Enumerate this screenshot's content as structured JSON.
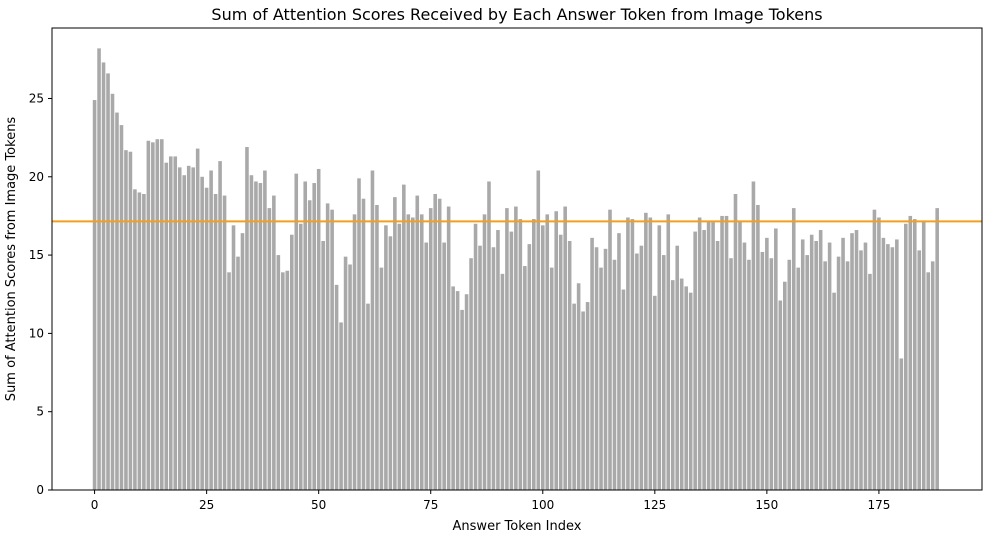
{
  "chart_data": {
    "type": "bar",
    "title": "Sum of Attention Scores Received by Each Answer Token from Image Tokens",
    "xlabel": "Answer Token Index",
    "ylabel": "Sum of Attention Scores from Image Tokens",
    "xlim": [
      -9.5,
      198
    ],
    "ylim": [
      0,
      29.5
    ],
    "x_ticks": [
      0,
      25,
      50,
      75,
      100,
      125,
      150,
      175
    ],
    "y_ticks": [
      0,
      5,
      10,
      15,
      20,
      25
    ],
    "grid": false,
    "bar_color": "#a9a9a9",
    "reference_line": {
      "y": 17.15,
      "color": "#f0a01e"
    },
    "values": [
      24.9,
      28.2,
      27.3,
      26.6,
      25.3,
      24.1,
      23.3,
      21.7,
      21.6,
      19.2,
      19.0,
      18.9,
      22.3,
      22.2,
      22.4,
      22.4,
      20.9,
      21.3,
      21.3,
      20.6,
      20.1,
      20.7,
      20.6,
      21.8,
      20.0,
      19.3,
      20.4,
      18.9,
      21.0,
      18.8,
      13.9,
      16.9,
      14.9,
      16.4,
      21.9,
      20.1,
      19.7,
      19.6,
      20.4,
      18.0,
      18.8,
      15.0,
      13.9,
      14.0,
      16.3,
      20.2,
      17.0,
      19.7,
      18.5,
      19.6,
      20.5,
      15.9,
      18.3,
      17.9,
      13.1,
      10.7,
      14.9,
      14.4,
      17.6,
      19.9,
      18.6,
      11.9,
      20.4,
      18.2,
      14.2,
      16.9,
      16.2,
      18.7,
      17.0,
      19.5,
      17.6,
      17.4,
      18.8,
      17.6,
      15.8,
      18.0,
      18.9,
      18.6,
      15.8,
      18.1,
      13.0,
      12.7,
      11.5,
      12.5,
      14.8,
      17.0,
      15.6,
      17.6,
      19.7,
      15.5,
      16.6,
      13.8,
      18.0,
      16.5,
      18.1,
      17.3,
      14.3,
      15.7,
      17.3,
      20.4,
      16.9,
      17.6,
      14.2,
      17.8,
      16.3,
      18.1,
      15.9,
      11.9,
      13.2,
      11.4,
      12.0,
      16.1,
      15.5,
      14.2,
      15.4,
      17.9,
      14.7,
      16.4,
      12.8,
      17.4,
      17.3,
      15.1,
      15.6,
      17.7,
      17.4,
      12.4,
      16.9,
      15.0,
      17.6,
      13.4,
      15.6,
      13.5,
      13.0,
      12.6,
      16.5,
      17.4,
      16.6,
      17.2,
      17.1,
      15.9,
      17.5,
      17.5,
      14.8,
      18.9,
      17.2,
      15.8,
      14.7,
      19.7,
      18.2,
      15.2,
      16.1,
      14.8,
      16.7,
      12.1,
      13.3,
      14.7,
      18.0,
      14.2,
      16.0,
      15.0,
      16.3,
      15.9,
      16.6,
      14.6,
      15.8,
      12.6,
      14.9,
      16.1,
      14.6,
      16.4,
      16.6,
      15.3,
      15.8,
      13.8,
      17.9,
      17.4,
      16.1,
      15.7,
      15.5,
      16.0,
      8.4,
      17.0,
      17.5,
      17.3,
      15.3,
      17.2,
      13.9,
      14.6,
      18.0
    ]
  }
}
